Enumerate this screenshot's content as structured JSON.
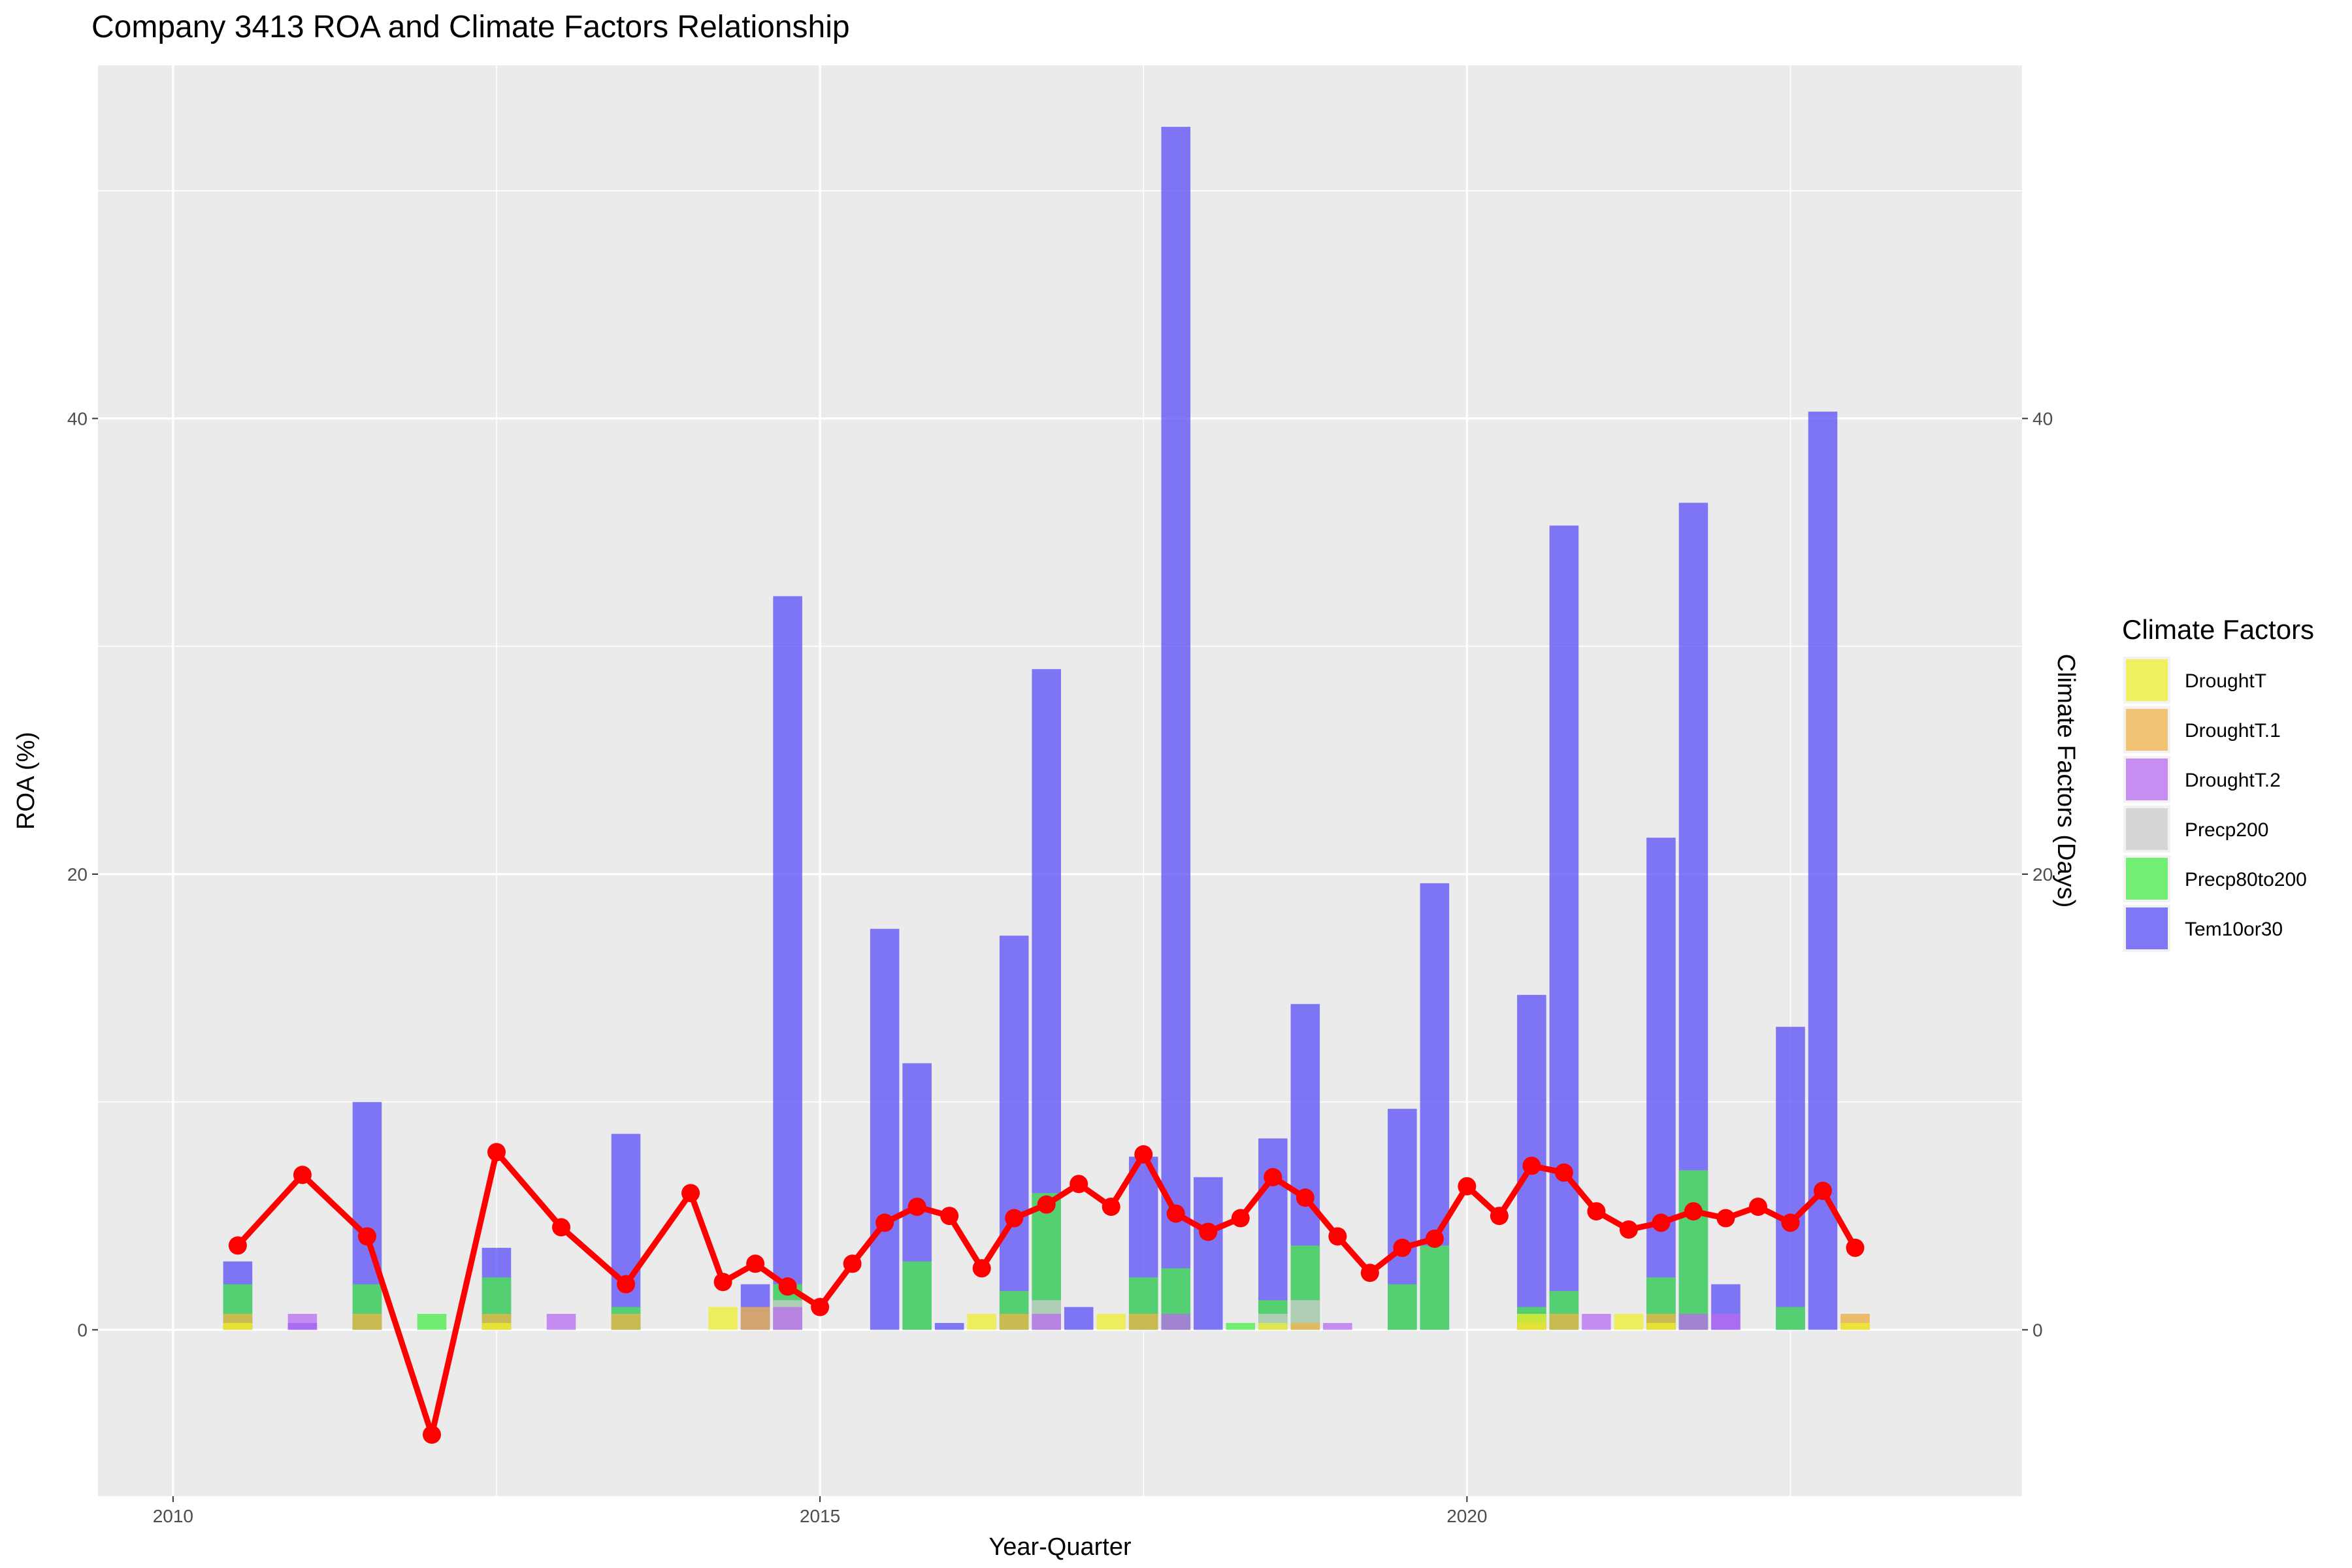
{
  "chart_data": {
    "type": "bar+line",
    "title": "Company 3413 ROA and Climate Factors Relationship",
    "xlabel": "Year-Quarter",
    "ylabel_left": "ROA (%)",
    "ylabel_right": "Climate Factors (Days)",
    "xlim": [
      2009.42,
      2024.29
    ],
    "ylim": [
      -7.3,
      55.5
    ],
    "x_ticks": [
      2010,
      2015,
      2020
    ],
    "y_ticks": [
      0,
      20,
      40
    ],
    "grid": true,
    "legend": {
      "title": "Climate Factors",
      "position": "right",
      "items": [
        {
          "name": "DroughtT",
          "color": "#eeee2e"
        },
        {
          "name": "DroughtT.1",
          "color": "#f0b347"
        },
        {
          "name": "DroughtT.2",
          "color": "#b96bf0"
        },
        {
          "name": "Precp200",
          "color": "#cccccc"
        },
        {
          "name": "Precp80to200",
          "color": "#47ee47"
        },
        {
          "name": "Tem10or30",
          "color": "#5a4ef7"
        }
      ]
    },
    "bar_series": [
      {
        "name": "Tem10or30",
        "color": "#5a4ef7",
        "points": [
          [
            2010.5,
            3.0
          ],
          [
            2011.0,
            0.3
          ],
          [
            2011.5,
            10.0
          ],
          [
            2012.5,
            3.6
          ],
          [
            2013.5,
            8.6
          ],
          [
            2014.5,
            2.0
          ],
          [
            2014.75,
            32.2
          ],
          [
            2015.5,
            17.6
          ],
          [
            2015.75,
            11.7
          ],
          [
            2016.0,
            0.3
          ],
          [
            2016.5,
            17.3
          ],
          [
            2016.75,
            29.0
          ],
          [
            2017.0,
            1.0
          ],
          [
            2017.5,
            7.6
          ],
          [
            2017.75,
            52.8
          ],
          [
            2018.0,
            6.7
          ],
          [
            2018.5,
            8.4
          ],
          [
            2018.75,
            14.3
          ],
          [
            2019.5,
            9.7
          ],
          [
            2019.75,
            19.6
          ],
          [
            2020.5,
            14.7
          ],
          [
            2020.75,
            35.3
          ],
          [
            2021.5,
            21.6
          ],
          [
            2021.75,
            36.3
          ],
          [
            2022.0,
            2.0
          ],
          [
            2022.5,
            13.3
          ],
          [
            2022.75,
            40.3
          ]
        ]
      },
      {
        "name": "Precp80to200",
        "color": "#47ee47",
        "points": [
          [
            2010.5,
            2.0
          ],
          [
            2011.5,
            2.0
          ],
          [
            2012.0,
            0.7
          ],
          [
            2012.5,
            2.3
          ],
          [
            2013.5,
            1.0
          ],
          [
            2014.75,
            2.0
          ],
          [
            2015.75,
            3.0
          ],
          [
            2016.5,
            1.7
          ],
          [
            2016.75,
            6.0
          ],
          [
            2017.5,
            2.3
          ],
          [
            2017.75,
            2.7
          ],
          [
            2018.25,
            0.3
          ],
          [
            2018.5,
            1.3
          ],
          [
            2018.75,
            3.7
          ],
          [
            2019.5,
            2.0
          ],
          [
            2019.75,
            3.7
          ],
          [
            2020.5,
            1.0
          ],
          [
            2020.75,
            1.7
          ],
          [
            2021.5,
            2.3
          ],
          [
            2021.75,
            7.0
          ],
          [
            2022.5,
            1.0
          ]
        ]
      },
      {
        "name": "Precp200",
        "color": "#cccccc",
        "points": [
          [
            2014.75,
            1.3
          ],
          [
            2016.75,
            1.3
          ],
          [
            2018.5,
            0.7
          ],
          [
            2018.75,
            1.3
          ],
          [
            2023.0,
            0.7
          ]
        ]
      },
      {
        "name": "DroughtT.2",
        "color": "#b96bf0",
        "points": [
          [
            2011.0,
            0.7
          ],
          [
            2013.0,
            0.7
          ],
          [
            2014.75,
            1.0
          ],
          [
            2016.75,
            0.7
          ],
          [
            2017.75,
            0.7
          ],
          [
            2019.0,
            0.3
          ],
          [
            2021.0,
            0.7
          ],
          [
            2021.75,
            0.7
          ],
          [
            2022.0,
            0.7
          ]
        ]
      },
      {
        "name": "DroughtT.1",
        "color": "#f0b347",
        "points": [
          [
            2010.5,
            0.7
          ],
          [
            2011.5,
            0.7
          ],
          [
            2012.5,
            0.7
          ],
          [
            2013.5,
            0.7
          ],
          [
            2014.5,
            1.0
          ],
          [
            2016.5,
            0.7
          ],
          [
            2017.5,
            0.7
          ],
          [
            2018.75,
            0.3
          ],
          [
            2020.5,
            0.3
          ],
          [
            2020.75,
            0.7
          ],
          [
            2021.5,
            0.7
          ],
          [
            2023.0,
            0.7
          ]
        ]
      },
      {
        "name": "DroughtT",
        "color": "#eeee2e",
        "points": [
          [
            2010.5,
            0.3
          ],
          [
            2012.5,
            0.3
          ],
          [
            2014.25,
            1.0
          ],
          [
            2016.25,
            0.7
          ],
          [
            2017.25,
            0.7
          ],
          [
            2018.5,
            0.3
          ],
          [
            2020.5,
            0.7
          ],
          [
            2021.25,
            0.7
          ],
          [
            2021.5,
            0.3
          ],
          [
            2023.0,
            0.3
          ]
        ]
      }
    ],
    "line_series": {
      "name": "ROA",
      "color": "#ff0000",
      "points": [
        [
          2010.5,
          3.7
        ],
        [
          2011.0,
          6.8
        ],
        [
          2011.5,
          4.1
        ],
        [
          2012.0,
          -4.6
        ],
        [
          2012.5,
          7.8
        ],
        [
          2013.0,
          4.5
        ],
        [
          2013.5,
          2.0
        ],
        [
          2014.0,
          6.0
        ],
        [
          2014.25,
          2.1
        ],
        [
          2014.5,
          2.9
        ],
        [
          2014.75,
          1.9
        ],
        [
          2015.0,
          1.0
        ],
        [
          2015.25,
          2.9
        ],
        [
          2015.5,
          4.7
        ],
        [
          2015.75,
          5.4
        ],
        [
          2016.0,
          5.0
        ],
        [
          2016.25,
          2.7
        ],
        [
          2016.5,
          4.9
        ],
        [
          2016.75,
          5.5
        ],
        [
          2017.0,
          6.4
        ],
        [
          2017.25,
          5.4
        ],
        [
          2017.5,
          7.7
        ],
        [
          2017.75,
          5.1
        ],
        [
          2018.0,
          4.3
        ],
        [
          2018.25,
          4.9
        ],
        [
          2018.5,
          6.7
        ],
        [
          2018.75,
          5.8
        ],
        [
          2019.0,
          4.1
        ],
        [
          2019.25,
          2.5
        ],
        [
          2019.5,
          3.6
        ],
        [
          2019.75,
          4.0
        ],
        [
          2020.0,
          6.3
        ],
        [
          2020.25,
          5.0
        ],
        [
          2020.5,
          7.2
        ],
        [
          2020.75,
          6.9
        ],
        [
          2021.0,
          5.2
        ],
        [
          2021.25,
          4.4
        ],
        [
          2021.5,
          4.7
        ],
        [
          2021.75,
          5.2
        ],
        [
          2022.0,
          4.9
        ],
        [
          2022.25,
          5.4
        ],
        [
          2022.5,
          4.7
        ],
        [
          2022.75,
          6.1
        ],
        [
          2023.0,
          3.6
        ]
      ]
    }
  }
}
